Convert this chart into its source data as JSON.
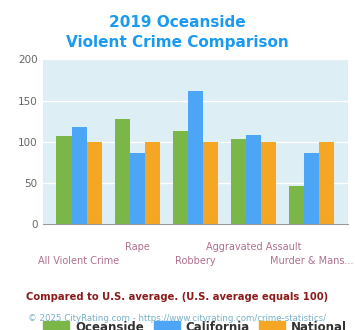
{
  "title_line1": "2019 Oceanside",
  "title_line2": "Violent Crime Comparison",
  "title_color": "#1a9af0",
  "categories": [
    "All Violent Crime",
    "Rape",
    "Robbery",
    "Aggravated Assault",
    "Murder & Mans..."
  ],
  "x_top_labels": [
    "",
    "Rape",
    "",
    "Aggravated Assault",
    ""
  ],
  "x_bot_labels": [
    "All Violent Crime",
    "",
    "Robbery",
    "",
    "Murder & Mans..."
  ],
  "oceanside": [
    107,
    128,
    113,
    103,
    47
  ],
  "california": [
    118,
    87,
    162,
    108,
    86
  ],
  "national": [
    100,
    100,
    100,
    100,
    100
  ],
  "oceanside_color": "#7ab648",
  "california_color": "#4da6f5",
  "national_color": "#f5a623",
  "ylim": [
    0,
    200
  ],
  "yticks": [
    0,
    50,
    100,
    150,
    200
  ],
  "plot_bg_color": "#ddeef5",
  "grid_color": "#ffffff",
  "xlabel_color": "#b07090",
  "tick_color": "#666666",
  "legend_labels": [
    "Oceanside",
    "California",
    "National"
  ],
  "legend_text_color": "#333333",
  "footnote1": "Compared to U.S. average. (U.S. average equals 100)",
  "footnote2": "© 2025 CityRating.com - https://www.cityrating.com/crime-statistics/",
  "footnote1_color": "#8b1a1a",
  "footnote2_color": "#7ab0c8"
}
